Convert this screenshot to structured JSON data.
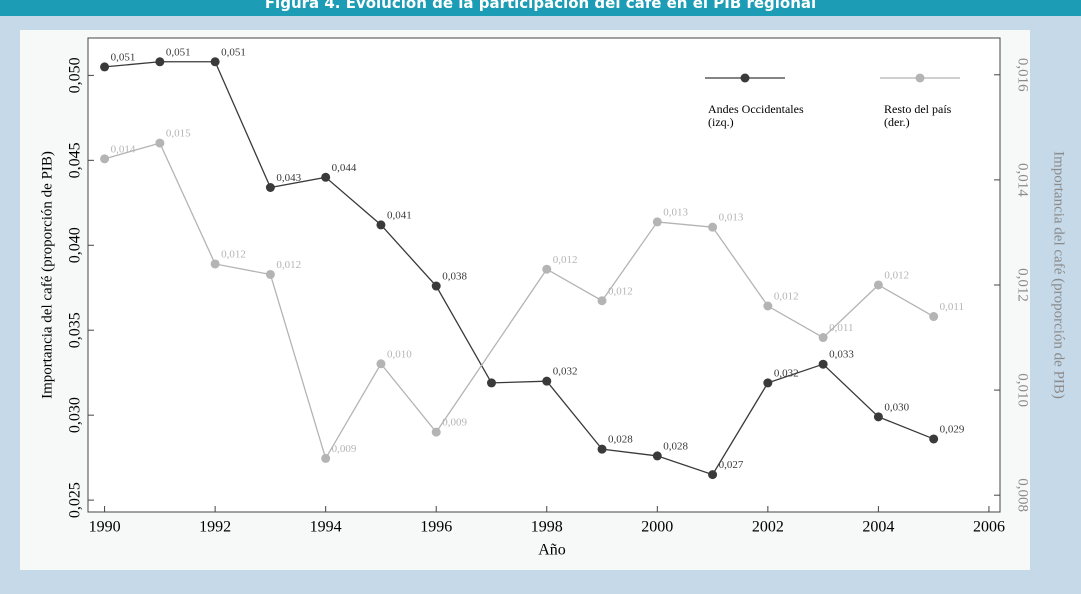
{
  "chart_data": {
    "type": "line",
    "title": "Figura 4. Evolución de la participación del café en el PIB regional",
    "xlabel": "Año",
    "ylabel": "Importancia del café (proporción de PIB)",
    "y2label": "Importancia del café (proporción de PIB)",
    "xlim": [
      1989.7,
      2006.2
    ],
    "xticks": [
      1990,
      1992,
      1994,
      1996,
      1998,
      2000,
      2002,
      2004,
      2006
    ],
    "ylim": [
      0.0243,
      0.0522
    ],
    "yticks": [
      {
        "value": 0.025,
        "label": "0,025"
      },
      {
        "value": 0.03,
        "label": "0,030"
      },
      {
        "value": 0.035,
        "label": "0,035"
      },
      {
        "value": 0.04,
        "label": "0,040"
      },
      {
        "value": 0.045,
        "label": "0,045"
      },
      {
        "value": 0.05,
        "label": "0,050"
      }
    ],
    "y2lim": [
      0.00768,
      0.0167
    ],
    "y2ticks": [
      {
        "value": 0.008,
        "label": "0,008"
      },
      {
        "value": 0.01,
        "label": "0,010"
      },
      {
        "value": 0.012,
        "label": "0,012"
      },
      {
        "value": 0.014,
        "label": "0,014"
      },
      {
        "value": 0.016,
        "label": "0,016"
      }
    ],
    "legend": "upper right",
    "series": [
      {
        "name": "Andes Occidentales (izq.)",
        "color": "#3a3a3a",
        "axis": "y",
        "x": [
          1990,
          1991,
          1992,
          1993,
          1994,
          1995,
          1996,
          1997,
          1998,
          1999,
          2000,
          2001,
          2002,
          2003,
          2004,
          2005
        ],
        "values": [
          0.0505,
          0.0508,
          0.0508,
          0.0434,
          0.044,
          0.0412,
          0.0376,
          0.0319,
          0.032,
          0.028,
          0.0276,
          0.0265,
          0.0319,
          0.033,
          0.0299,
          0.0286
        ],
        "value_labels": [
          "0,051",
          "0,051",
          "0,051",
          "0,043",
          "0,044",
          "0,041",
          "0,038",
          null,
          "0,032",
          "0,028",
          "0,028",
          "0,027",
          "0,032",
          "0,033",
          "0,030",
          "0,029"
        ]
      },
      {
        "name": "Resto del país (der.)",
        "color": "#b4b4b4",
        "axis": "y2",
        "x": [
          1990,
          1991,
          1992,
          1993,
          1994,
          1995,
          1996,
          1998,
          1999,
          2000,
          2001,
          2002,
          2003,
          2004,
          2005
        ],
        "values": [
          0.0144,
          0.0147,
          0.0124,
          0.0122,
          0.0087,
          0.0105,
          0.0092,
          0.0123,
          0.0117,
          0.0132,
          0.0131,
          0.0116,
          0.011,
          0.012,
          0.0114
        ],
        "value_labels": [
          "0,014",
          "0,015",
          "0,012",
          "0,012",
          "0,009",
          "0,010",
          "0,009",
          "0,012",
          "0,012",
          "0,013",
          "0,013",
          "0,012",
          "0,011",
          "0,012",
          "0,011"
        ]
      }
    ]
  }
}
